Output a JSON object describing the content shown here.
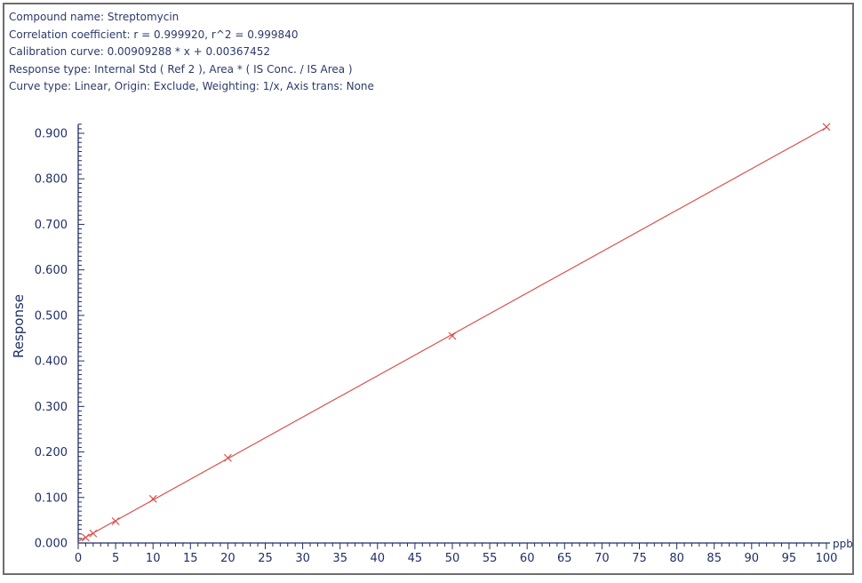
{
  "header": {
    "compound": "Compound name: Streptomycin",
    "correlation": "Correlation coefficient: r = 0.999920, r^2 = 0.999840",
    "calibration": "Calibration curve: 0.00909288 * x + 0.00367452",
    "response_type": "Response type: Internal Std ( Ref 2 ), Area * ( IS Conc. / IS Area )",
    "curve_type": "Curve type: Linear, Origin: Exclude, Weighting: 1/x, Axis trans: None"
  },
  "colors": {
    "axis": "#1f2f66",
    "line": "#d9534f",
    "marker": "#d9534f",
    "text": "#2b3a6b"
  },
  "chart_data": {
    "type": "scatter",
    "title": "",
    "xlabel": "",
    "ylabel": "Response",
    "x_unit": "ppb",
    "xlim": [
      0,
      100
    ],
    "ylim": [
      0,
      0.9
    ],
    "x_ticks": [
      0,
      5,
      10,
      15,
      20,
      25,
      30,
      35,
      40,
      45,
      50,
      55,
      60,
      65,
      70,
      75,
      80,
      85,
      90,
      95,
      100
    ],
    "y_ticks": [
      "0.000",
      "0.100",
      "0.200",
      "0.300",
      "0.400",
      "0.500",
      "0.600",
      "0.700",
      "0.800",
      "0.900"
    ],
    "grid": false,
    "legend": "none",
    "series": [
      {
        "points": [
          {
            "x": 1,
            "y": 0.012
          },
          {
            "x": 2,
            "y": 0.021
          },
          {
            "x": 5,
            "y": 0.048
          },
          {
            "x": 10,
            "y": 0.097
          },
          {
            "x": 20,
            "y": 0.187
          },
          {
            "x": 50,
            "y": 0.455
          },
          {
            "x": 100,
            "y": 0.914
          }
        ]
      }
    ],
    "fit": {
      "slope": 0.00909288,
      "intercept": 0.00367452,
      "x_range": [
        0,
        100
      ]
    }
  }
}
